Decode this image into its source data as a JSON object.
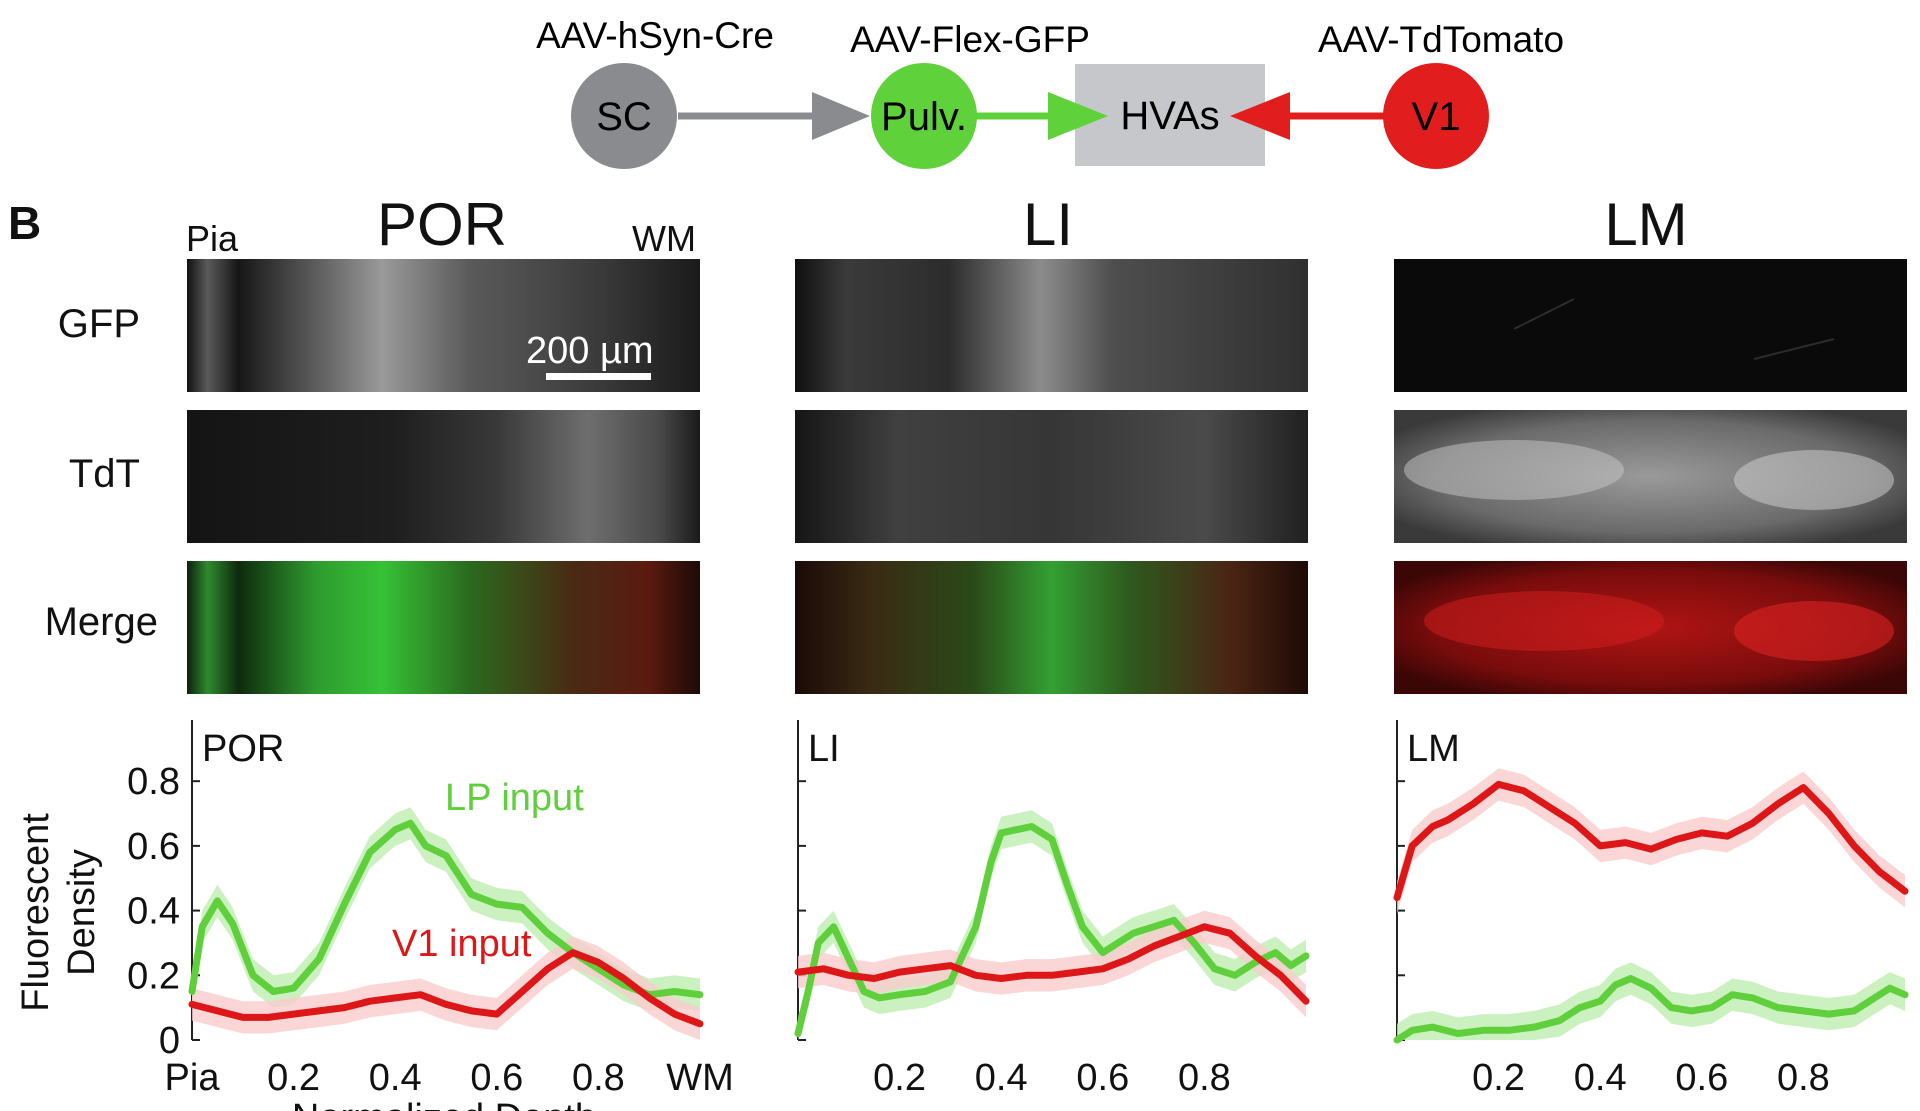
{
  "diagram": {
    "nodes": [
      {
        "id": "sc",
        "label": "SC",
        "virus": "AAV-hSyn-Cre",
        "color": "#8a8b8e"
      },
      {
        "id": "pulv",
        "label": "Pulv.",
        "virus": "AAV-Flex-GFP",
        "color": "#5fd13a"
      },
      {
        "id": "hvas",
        "label": "HVAs",
        "virus": "",
        "color": "#c6c7ca"
      },
      {
        "id": "v1",
        "label": "V1",
        "virus": "AAV-TdTomato",
        "color": "#e21d1d"
      }
    ]
  },
  "panel_b": {
    "letter": "B",
    "columns": [
      "POR",
      "LI",
      "LM"
    ],
    "rows": [
      "GFP",
      "TdT",
      "Merge"
    ],
    "pia_label": "Pia",
    "wm_label": "WM",
    "scalebar": "200 µm"
  },
  "colors": {
    "lp": "#5fcf3c",
    "v1": "#dd1717",
    "lp_band": "#bfeeb0",
    "v1_band": "#f9cccc"
  },
  "chart_data": [
    {
      "type": "line",
      "title": "POR",
      "xlabel": "Normalized Depth",
      "ylabel": "Fluorescent Density",
      "xlim": [
        0,
        1
      ],
      "ylim": [
        0,
        0.85
      ],
      "xtick_labels": [
        "Pia",
        "0.2",
        "0.4",
        "0.6",
        "0.8",
        "WM"
      ],
      "ytick_labels": [
        "0",
        "0.2",
        "0.4",
        "0.6",
        "0.8"
      ],
      "annotations": [
        "LP input",
        "V1 input"
      ],
      "series": [
        {
          "name": "LP input",
          "color": "#5fcf3c",
          "x": [
            0,
            0.02,
            0.05,
            0.08,
            0.12,
            0.16,
            0.2,
            0.25,
            0.3,
            0.35,
            0.4,
            0.43,
            0.46,
            0.5,
            0.55,
            0.6,
            0.65,
            0.7,
            0.75,
            0.8,
            0.85,
            0.9,
            0.95,
            1.0
          ],
          "y": [
            0.15,
            0.35,
            0.43,
            0.36,
            0.2,
            0.15,
            0.16,
            0.25,
            0.42,
            0.58,
            0.65,
            0.67,
            0.6,
            0.57,
            0.45,
            0.42,
            0.41,
            0.33,
            0.27,
            0.22,
            0.17,
            0.14,
            0.15,
            0.14
          ]
        },
        {
          "name": "V1 input",
          "color": "#dd1717",
          "x": [
            0,
            0.05,
            0.1,
            0.15,
            0.2,
            0.25,
            0.3,
            0.35,
            0.4,
            0.45,
            0.5,
            0.55,
            0.6,
            0.65,
            0.7,
            0.75,
            0.8,
            0.85,
            0.9,
            0.95,
            1.0
          ],
          "y": [
            0.11,
            0.09,
            0.07,
            0.07,
            0.08,
            0.09,
            0.1,
            0.12,
            0.13,
            0.14,
            0.11,
            0.09,
            0.08,
            0.15,
            0.22,
            0.27,
            0.24,
            0.19,
            0.13,
            0.08,
            0.05
          ]
        }
      ]
    },
    {
      "type": "line",
      "title": "LI",
      "xlim": [
        0,
        1
      ],
      "ylim": [
        0,
        0.85
      ],
      "xtick_labels": [
        "0.2",
        "0.4",
        "0.6",
        "0.8"
      ],
      "series": [
        {
          "name": "LP input",
          "color": "#5fcf3c",
          "x": [
            0,
            0.02,
            0.04,
            0.07,
            0.1,
            0.13,
            0.16,
            0.2,
            0.25,
            0.3,
            0.35,
            0.38,
            0.4,
            0.43,
            0.46,
            0.5,
            0.53,
            0.56,
            0.6,
            0.63,
            0.66,
            0.7,
            0.74,
            0.78,
            0.82,
            0.86,
            0.9,
            0.94,
            0.97,
            1.0
          ],
          "y": [
            0.02,
            0.15,
            0.3,
            0.35,
            0.25,
            0.15,
            0.13,
            0.14,
            0.15,
            0.18,
            0.35,
            0.55,
            0.64,
            0.65,
            0.66,
            0.62,
            0.48,
            0.35,
            0.27,
            0.3,
            0.33,
            0.35,
            0.37,
            0.3,
            0.22,
            0.2,
            0.24,
            0.27,
            0.23,
            0.26
          ]
        },
        {
          "name": "V1 input",
          "color": "#dd1717",
          "x": [
            0,
            0.05,
            0.1,
            0.15,
            0.2,
            0.25,
            0.3,
            0.35,
            0.4,
            0.45,
            0.5,
            0.55,
            0.6,
            0.65,
            0.7,
            0.75,
            0.8,
            0.85,
            0.9,
            0.95,
            1.0
          ],
          "y": [
            0.21,
            0.22,
            0.2,
            0.19,
            0.21,
            0.22,
            0.23,
            0.2,
            0.19,
            0.2,
            0.2,
            0.21,
            0.22,
            0.25,
            0.29,
            0.32,
            0.35,
            0.33,
            0.26,
            0.2,
            0.12
          ]
        }
      ]
    },
    {
      "type": "line",
      "title": "LM",
      "xlim": [
        0,
        1
      ],
      "ylim": [
        0,
        0.85
      ],
      "xtick_labels": [
        "0.2",
        "0.4",
        "0.6",
        "0.8"
      ],
      "series": [
        {
          "name": "V1 input",
          "color": "#dd1717",
          "x": [
            0,
            0.03,
            0.07,
            0.1,
            0.15,
            0.2,
            0.25,
            0.3,
            0.35,
            0.4,
            0.45,
            0.5,
            0.55,
            0.6,
            0.65,
            0.7,
            0.75,
            0.8,
            0.85,
            0.9,
            0.95,
            1.0
          ],
          "y": [
            0.44,
            0.6,
            0.66,
            0.68,
            0.73,
            0.79,
            0.77,
            0.72,
            0.67,
            0.6,
            0.61,
            0.59,
            0.62,
            0.64,
            0.63,
            0.67,
            0.73,
            0.78,
            0.7,
            0.6,
            0.52,
            0.46
          ]
        },
        {
          "name": "LP input",
          "color": "#5fcf3c",
          "x": [
            0,
            0.03,
            0.07,
            0.12,
            0.17,
            0.22,
            0.27,
            0.32,
            0.36,
            0.4,
            0.43,
            0.46,
            0.5,
            0.54,
            0.58,
            0.62,
            0.66,
            0.7,
            0.75,
            0.8,
            0.85,
            0.9,
            0.94,
            0.97,
            1.0
          ],
          "y": [
            0.0,
            0.03,
            0.04,
            0.02,
            0.03,
            0.03,
            0.04,
            0.06,
            0.1,
            0.12,
            0.17,
            0.19,
            0.16,
            0.1,
            0.09,
            0.1,
            0.14,
            0.13,
            0.1,
            0.09,
            0.08,
            0.09,
            0.13,
            0.16,
            0.14
          ]
        }
      ]
    }
  ]
}
